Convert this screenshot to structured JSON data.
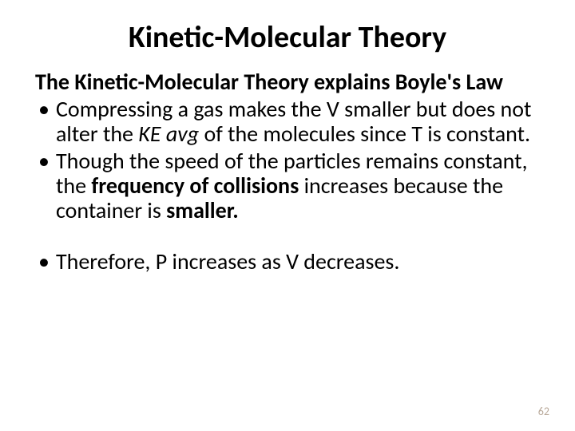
{
  "title": {
    "text": "Kinetic-Molecular Theory",
    "fontsize": 38
  },
  "subheading": {
    "text": "The Kinetic-Molecular Theory explains Boyle's Law",
    "fontsize": 28
  },
  "body_fontsize": 28,
  "bullets": {
    "b1": {
      "seg1": "Compressing a gas makes the V smaller but does not alter the ",
      "seg2_italic": "KE avg",
      "seg3": " of the molecules since T is constant."
    },
    "b2": {
      "seg1": "Though the speed of the particles remains constant, the ",
      "seg2_bold": "frequency of collisions",
      "seg3": " increases because the container is ",
      "seg4_bold": "smaller."
    },
    "b3": {
      "seg1": "Therefore, P increases as V decreases."
    }
  },
  "pagenum": "62",
  "colors": {
    "text": "#000000",
    "background": "#ffffff",
    "pagenum": "#b9a99a"
  }
}
